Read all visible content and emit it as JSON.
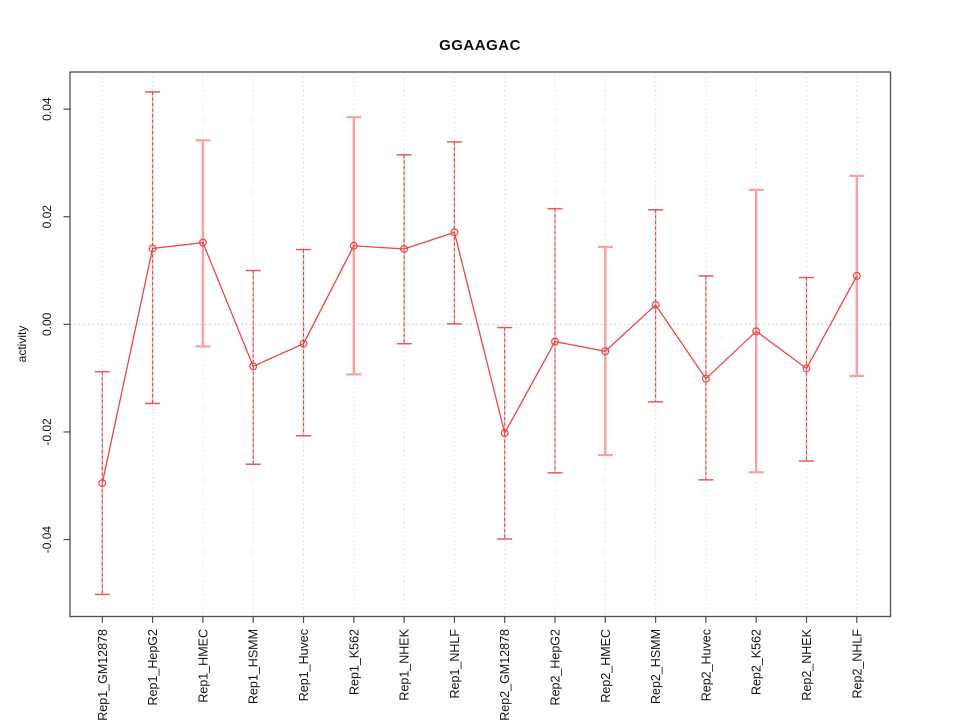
{
  "figure": {
    "title": "GGAAGAC",
    "y_axis_label": "activity"
  },
  "chart_data": {
    "type": "line",
    "title": "GGAAGAC",
    "xlabel": "",
    "ylabel": "activity",
    "legend": "none",
    "grid": {
      "vertical": "dotted line at every category",
      "horizontal": "dotted line at y=0"
    },
    "categories": [
      "Rep1_GM12878",
      "Rep1_HepG2",
      "Rep1_HMEC",
      "Rep1_HSMM",
      "Rep1_Huvec",
      "Rep1_K562",
      "Rep1_NHEK",
      "Rep1_NHLF",
      "Rep2_GM12878",
      "Rep2_HepG2",
      "Rep2_HMEC",
      "Rep2_HSMM",
      "Rep2_Huvec",
      "Rep2_K562",
      "Rep2_NHEK",
      "Rep2_NHLF"
    ],
    "series": [
      {
        "name": "activity",
        "marker": "open-circle",
        "values": [
          -0.0295,
          0.0141,
          0.0152,
          -0.0078,
          -0.0036,
          0.0146,
          0.014,
          0.0171,
          -0.0202,
          -0.0032,
          -0.005,
          0.0036,
          -0.0101,
          -0.0013,
          -0.0082,
          0.009
        ],
        "ci_upper": [
          -0.0088,
          0.0432,
          0.0342,
          0.01,
          0.0139,
          0.0385,
          0.0315,
          0.0339,
          -0.0006,
          0.0215,
          0.0144,
          0.0213,
          0.009,
          0.025,
          0.0087,
          0.0276
        ],
        "ci_lower": [
          -0.0502,
          -0.0147,
          -0.0041,
          -0.026,
          -0.0207,
          -0.0093,
          -0.0036,
          0.0001,
          -0.0399,
          -0.0276,
          -0.0243,
          -0.0144,
          -0.0289,
          -0.0275,
          -0.0254,
          -0.0096
        ],
        "bar_styles": [
          "dashed",
          "dashed",
          "solid",
          "dashed",
          "dashed",
          "solid",
          "dashed",
          "dashed",
          "dashed",
          "dashed",
          "solid",
          "dashed",
          "dashed",
          "solid",
          "dashed",
          "solid"
        ]
      }
    ],
    "yticks": [
      -0.04,
      -0.02,
      0.0,
      0.02,
      0.04
    ],
    "ytick_labels": [
      "-0.04",
      "-0.02",
      "0.00",
      "0.02",
      "0.04"
    ],
    "ylim": [
      -0.0543,
      0.0469
    ],
    "colors": {
      "point": "#ee4545",
      "line": "#ee4545",
      "ci_solid": "#f7a2a2",
      "ci_dash_underlay": "#f6b5b5",
      "ci_dashed": "#d94444",
      "ci_dash_cap": "#e25b5b",
      "grid": "#dadada",
      "zero_line": "#c8c8c8",
      "axis": "#4f4f4f",
      "text": "#141414",
      "background": "#ffffff"
    }
  }
}
